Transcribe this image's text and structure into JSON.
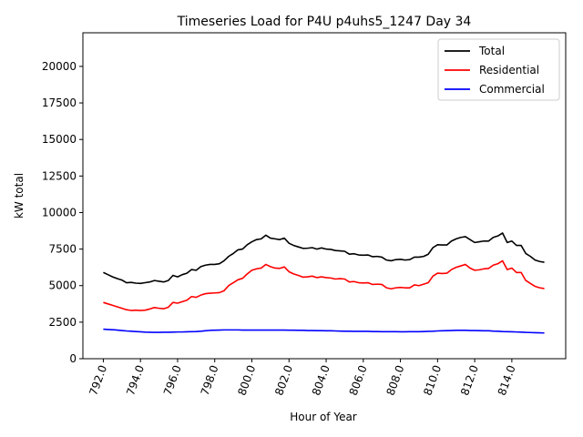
{
  "chart_data": {
    "type": "line",
    "title": "Timeseries Load for P4U p4uhs5_1247  Day 34",
    "xlabel": "Hour of Year",
    "ylabel": "kW total",
    "xlim": [
      790.9,
      816.9
    ],
    "ylim": [
      0,
      22300
    ],
    "xticks": [
      792,
      794,
      796,
      798,
      800,
      802,
      804,
      806,
      808,
      810,
      812,
      814
    ],
    "xtick_labels": [
      "792.0",
      "794.0",
      "796.0",
      "798.0",
      "800.0",
      "802.0",
      "804.0",
      "806.0",
      "808.0",
      "810.0",
      "812.0",
      "814.0"
    ],
    "yticks": [
      0,
      2500,
      5000,
      7500,
      10000,
      12500,
      15000,
      17500,
      20000
    ],
    "ytick_labels": [
      "0",
      "2500",
      "5000",
      "7500",
      "10000",
      "12500",
      "15000",
      "17500",
      "20000"
    ],
    "legend_position": "top-right",
    "x": [
      792.0,
      792.25,
      792.5,
      792.75,
      793.0,
      793.25,
      793.5,
      793.75,
      794.0,
      794.25,
      794.5,
      794.75,
      795.0,
      795.25,
      795.5,
      795.75,
      796.0,
      796.25,
      796.5,
      796.75,
      797.0,
      797.25,
      797.5,
      797.75,
      798.0,
      798.25,
      798.5,
      798.75,
      799.0,
      799.25,
      799.5,
      799.75,
      800.0,
      800.25,
      800.5,
      800.75,
      801.0,
      801.25,
      801.5,
      801.75,
      802.0,
      802.25,
      802.5,
      802.75,
      803.0,
      803.25,
      803.5,
      803.75,
      804.0,
      804.25,
      804.5,
      804.75,
      805.0,
      805.25,
      805.5,
      805.75,
      806.0,
      806.25,
      806.5,
      806.75,
      807.0,
      807.25,
      807.5,
      807.75,
      808.0,
      808.25,
      808.5,
      808.75,
      809.0,
      809.25,
      809.5,
      809.75,
      810.0,
      810.25,
      810.5,
      810.75,
      811.0,
      811.25,
      811.5,
      811.75,
      812.0,
      812.25,
      812.5,
      812.75,
      813.0,
      813.25,
      813.5,
      813.75,
      814.0,
      814.25,
      814.5,
      814.75,
      815.0,
      815.25,
      815.5,
      815.75
    ],
    "series": [
      {
        "name": "Total",
        "color": "#000000",
        "values": [
          5900,
          5750,
          5600,
          5480,
          5380,
          5200,
          5220,
          5170,
          5150,
          5200,
          5250,
          5350,
          5300,
          5250,
          5350,
          5700,
          5600,
          5750,
          5850,
          6100,
          6050,
          6300,
          6400,
          6450,
          6450,
          6500,
          6700,
          7000,
          7200,
          7450,
          7500,
          7800,
          8000,
          8150,
          8200,
          8450,
          8250,
          8200,
          8150,
          8250,
          7900,
          7750,
          7650,
          7550,
          7560,
          7600,
          7500,
          7580,
          7500,
          7480,
          7400,
          7380,
          7350,
          7150,
          7180,
          7100,
          7080,
          7100,
          6980,
          7000,
          6950,
          6750,
          6700,
          6780,
          6800,
          6750,
          6780,
          6950,
          6950,
          7000,
          7150,
          7600,
          7800,
          7780,
          7780,
          8050,
          8200,
          8300,
          8350,
          8150,
          7950,
          8000,
          8050,
          8050,
          8300,
          8400,
          8600,
          7950,
          8050,
          7750,
          7750,
          7200,
          7000,
          6750,
          6650,
          6600
        ]
      },
      {
        "name": "Residential",
        "color": "#ff0000",
        "values": [
          3850,
          3750,
          3650,
          3550,
          3450,
          3350,
          3300,
          3320,
          3300,
          3320,
          3400,
          3500,
          3450,
          3420,
          3520,
          3850,
          3800,
          3900,
          4000,
          4250,
          4200,
          4350,
          4450,
          4480,
          4500,
          4520,
          4650,
          5000,
          5200,
          5400,
          5500,
          5800,
          6050,
          6150,
          6200,
          6450,
          6300,
          6200,
          6180,
          6280,
          5950,
          5800,
          5700,
          5580,
          5600,
          5650,
          5550,
          5600,
          5550,
          5520,
          5450,
          5480,
          5450,
          5250,
          5280,
          5200,
          5180,
          5200,
          5080,
          5100,
          5080,
          4850,
          4780,
          4850,
          4880,
          4850,
          4850,
          5050,
          5000,
          5100,
          5200,
          5650,
          5850,
          5830,
          5850,
          6100,
          6250,
          6350,
          6450,
          6200,
          6050,
          6080,
          6150,
          6180,
          6400,
          6500,
          6700,
          6100,
          6200,
          5900,
          5900,
          5350,
          5150,
          4950,
          4850,
          4800
        ]
      },
      {
        "name": "Commercial",
        "color": "#0000ff",
        "values": [
          2020,
          2000,
          1980,
          1960,
          1930,
          1900,
          1880,
          1860,
          1840,
          1820,
          1810,
          1800,
          1800,
          1810,
          1810,
          1820,
          1830,
          1830,
          1840,
          1850,
          1860,
          1880,
          1910,
          1940,
          1950,
          1960,
          1970,
          1970,
          1970,
          1970,
          1960,
          1960,
          1960,
          1960,
          1960,
          1960,
          1960,
          1960,
          1960,
          1960,
          1950,
          1950,
          1940,
          1940,
          1930,
          1930,
          1920,
          1920,
          1910,
          1910,
          1900,
          1890,
          1880,
          1880,
          1870,
          1870,
          1870,
          1870,
          1860,
          1860,
          1850,
          1850,
          1850,
          1850,
          1840,
          1840,
          1850,
          1850,
          1850,
          1860,
          1870,
          1880,
          1900,
          1910,
          1920,
          1930,
          1940,
          1940,
          1940,
          1930,
          1930,
          1920,
          1910,
          1910,
          1890,
          1880,
          1860,
          1850,
          1840,
          1830,
          1820,
          1800,
          1790,
          1780,
          1770,
          1760
        ]
      }
    ]
  }
}
